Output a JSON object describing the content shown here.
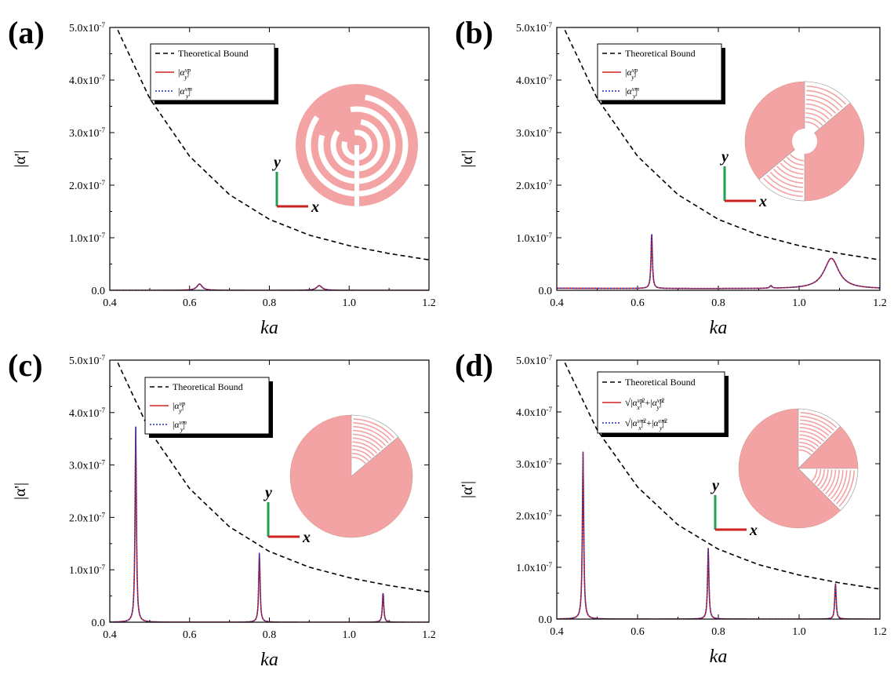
{
  "figure": {
    "colors": {
      "bound": "#000000",
      "curve_p": "#d42020",
      "curve_m": "#1f2fb8",
      "pattern": "#f3a3a3",
      "x_arrow": "#cc2222",
      "y_arrow": "#22a050"
    },
    "common": {
      "ylabel": "|α'|",
      "xlabel": "ka",
      "axis_x": "x",
      "axis_y": "y"
    }
  },
  "chart_data": [
    {
      "panel": "(a)",
      "type": "line",
      "xlabel": "ka",
      "ylabel": "|α'|",
      "xlim": [
        0.4,
        1.2
      ],
      "ylim": [
        0,
        5e-07
      ],
      "x_ticks": [
        "0.4",
        "0.6",
        "0.8",
        "1.0",
        "1.2"
      ],
      "y_ticks": [
        "0.0",
        "1.0x10-7",
        "2.0x10-7",
        "3.0x10-7",
        "4.0x10-7",
        "5.0x10-7"
      ],
      "legend": {
        "entries": [
          "Theoretical Bound",
          "|αy^vp|",
          "|αy^vm|"
        ],
        "placement": "top-center"
      },
      "series": [
        {
          "name": "Theoretical Bound",
          "style": "dashed",
          "x": [
            0.42,
            0.5,
            0.6,
            0.7,
            0.8,
            0.9,
            1.0,
            1.1,
            1.2
          ],
          "y": [
            4.95e-07,
            3.65e-07,
            2.55e-07,
            1.82e-07,
            1.35e-07,
            1.05e-07,
            8.5e-08,
            7e-08,
            5.8e-08
          ]
        },
        {
          "name": "|αy^vp|",
          "style": "solid",
          "baseline": 0.0,
          "peaks": [
            {
              "x": 0.625,
              "y": 1.2e-08,
              "w": 0.008
            },
            {
              "x": 0.925,
              "y": 9e-09,
              "w": 0.008
            }
          ]
        },
        {
          "name": "|αy^vm|",
          "style": "dotted",
          "baseline": 0.0,
          "peaks": [
            {
              "x": 0.625,
              "y": 1.2e-08,
              "w": 0.008
            },
            {
              "x": 0.925,
              "y": 9e-09,
              "w": 0.008
            }
          ]
        }
      ]
    },
    {
      "panel": "(b)",
      "type": "line",
      "xlabel": "ka",
      "ylabel": "|α'|",
      "xlim": [
        0.4,
        1.2
      ],
      "ylim": [
        0,
        5e-07
      ],
      "x_ticks": [
        "0.4",
        "0.6",
        "0.8",
        "1.0",
        "1.2"
      ],
      "y_ticks": [
        "0.0",
        "1.0x10-7",
        "2.0x10-7",
        "3.0x10-7",
        "4.0x10-7",
        "5.0x10-7"
      ],
      "legend": {
        "entries": [
          "Theoretical Bound",
          "|αy^vp|",
          "|αy^vm|"
        ],
        "placement": "top-center"
      },
      "series": [
        {
          "name": "Theoretical Bound",
          "style": "dashed",
          "x": [
            0.42,
            0.5,
            0.6,
            0.7,
            0.8,
            0.9,
            1.0,
            1.1,
            1.2
          ],
          "y": [
            4.95e-07,
            3.65e-07,
            2.55e-07,
            1.82e-07,
            1.35e-07,
            1.05e-07,
            8.5e-08,
            7e-08,
            5.8e-08
          ]
        },
        {
          "name": "|αy^vp|",
          "style": "solid",
          "baseline": 4e-09,
          "peaks": [
            {
              "x": 0.635,
              "y": 1.08e-07,
              "w": 0.002
            },
            {
              "x": 0.93,
              "y": 5e-09,
              "w": 0.003
            },
            {
              "x": 1.08,
              "y": 5.8e-08,
              "w": 0.022
            }
          ]
        },
        {
          "name": "|αy^vm|",
          "style": "dotted",
          "baseline": 4e-09,
          "peaks": [
            {
              "x": 0.635,
              "y": 1.08e-07,
              "w": 0.002
            },
            {
              "x": 0.93,
              "y": 5e-09,
              "w": 0.003
            },
            {
              "x": 1.08,
              "y": 5.8e-08,
              "w": 0.022
            }
          ]
        }
      ]
    },
    {
      "panel": "(c)",
      "type": "line",
      "xlabel": "ka",
      "ylabel": "|α'|",
      "xlim": [
        0.4,
        1.2
      ],
      "ylim": [
        0,
        5e-07
      ],
      "x_ticks": [
        "0.4",
        "0.6",
        "0.8",
        "1.0",
        "1.2"
      ],
      "y_ticks": [
        "0.0",
        "1.0x10-7",
        "2.0x10-7",
        "3.0x10-7",
        "4.0x10-7",
        "5.0x10-7"
      ],
      "legend": {
        "entries": [
          "Theoretical Bound",
          "|αy^vp|",
          "|αy^vm|"
        ],
        "placement": "top-center"
      },
      "series": [
        {
          "name": "Theoretical Bound",
          "style": "dashed",
          "x": [
            0.42,
            0.5,
            0.6,
            0.7,
            0.8,
            0.9,
            1.0,
            1.1,
            1.2
          ],
          "y": [
            4.95e-07,
            3.65e-07,
            2.55e-07,
            1.82e-07,
            1.35e-07,
            1.05e-07,
            8.5e-08,
            7e-08,
            5.8e-08
          ]
        },
        {
          "name": "|αy^vp|",
          "style": "solid",
          "baseline": 0.0,
          "peaks": [
            {
              "x": 0.465,
              "y": 3.75e-07,
              "w": 0.002
            },
            {
              "x": 0.775,
              "y": 1.33e-07,
              "w": 0.002
            },
            {
              "x": 1.085,
              "y": 5.8e-08,
              "w": 0.002
            }
          ]
        },
        {
          "name": "|αy^vm|",
          "style": "dotted",
          "baseline": 0.0,
          "peaks": [
            {
              "x": 0.465,
              "y": 3.75e-07,
              "w": 0.002
            },
            {
              "x": 0.775,
              "y": 1.33e-07,
              "w": 0.002
            },
            {
              "x": 1.085,
              "y": 5.8e-08,
              "w": 0.002
            }
          ]
        }
      ]
    },
    {
      "panel": "(d)",
      "type": "line",
      "xlabel": "ka",
      "ylabel": "|α'|",
      "xlim": [
        0.4,
        1.2
      ],
      "ylim": [
        0,
        5e-07
      ],
      "x_ticks": [
        "0.4",
        "0.6",
        "0.8",
        "1.0",
        "1.2"
      ],
      "y_ticks": [
        "0.0",
        "1.0x10-7",
        "2.0x10-7",
        "3.0x10-7",
        "4.0x10-7",
        "5.0x10-7"
      ],
      "legend": {
        "entries": [
          "Theoretical Bound",
          "√(|αx^vp|²+|αy^vp|²)",
          "√(|αx^vm|²+|αy^vm|²)"
        ],
        "placement": "top-center"
      },
      "series": [
        {
          "name": "Theoretical Bound",
          "style": "dashed",
          "x": [
            0.42,
            0.5,
            0.6,
            0.7,
            0.8,
            0.9,
            1.0,
            1.1,
            1.2
          ],
          "y": [
            4.95e-07,
            3.65e-07,
            2.55e-07,
            1.82e-07,
            1.35e-07,
            1.05e-07,
            8.5e-08,
            7e-08,
            5.8e-08
          ]
        },
        {
          "name": "√(|αx^vp|²+|αy^vp|²)",
          "style": "solid",
          "baseline": 0.0,
          "peaks": [
            {
              "x": 0.465,
              "y": 3.25e-07,
              "w": 0.002
            },
            {
              "x": 0.775,
              "y": 1.38e-07,
              "w": 0.002
            },
            {
              "x": 1.09,
              "y": 7e-08,
              "w": 0.002
            }
          ]
        },
        {
          "name": "√(|αx^vm|²+|αy^vm|²)",
          "style": "dotted",
          "baseline": 0.0,
          "peaks": [
            {
              "x": 0.465,
              "y": 3.25e-07,
              "w": 0.002
            },
            {
              "x": 0.775,
              "y": 1.38e-07,
              "w": 0.002
            },
            {
              "x": 1.09,
              "y": 7e-08,
              "w": 0.002
            }
          ]
        }
      ]
    }
  ]
}
